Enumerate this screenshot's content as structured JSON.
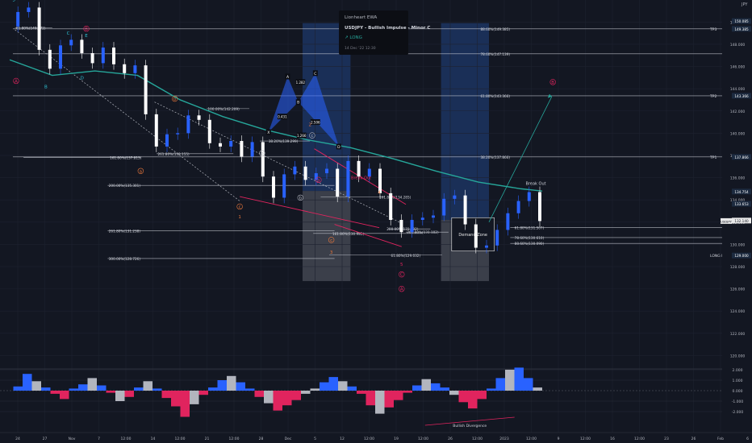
{
  "chart_data": {
    "type": "line",
    "symbol": "USDJPY",
    "price_scale": {
      "unit_label": "JPY",
      "ticks": [
        120,
        122,
        124,
        126,
        128,
        130,
        132,
        134,
        136,
        138,
        140,
        142,
        144,
        146,
        148,
        150
      ],
      "range": [
        118.8,
        151.4
      ],
      "badges": [
        {
          "price": 150.085,
          "label": "150.085",
          "color": "#1c2a3f"
        },
        {
          "price": 149.385,
          "label": "149.385",
          "color": "#1c2a3f"
        },
        {
          "price": 143.366,
          "label": "143.366",
          "color": "#1c2a3f"
        },
        {
          "price": 137.866,
          "label": "137.866",
          "color": "#1c2a3f"
        },
        {
          "price": 134.754,
          "label": "134.754",
          "color": "#1c2a3f"
        },
        {
          "price": 133.653,
          "label": "133.653",
          "color": "#1c2a3f"
        },
        {
          "price": 132.14,
          "label": "132.140",
          "color": "#e8e8e8"
        },
        {
          "price": 128.999,
          "label": "129.000",
          "color": "#1c2a3f"
        }
      ],
      "side_labels": [
        {
          "price": 149.385,
          "text": "TP3"
        },
        {
          "price": 143.366,
          "text": "TP2"
        },
        {
          "price": 137.866,
          "text": "TP1"
        },
        {
          "price": 128.999,
          "text": "LONG ENTRY 2"
        }
      ],
      "symbol_tag": "USDJPY"
    },
    "time_axis": [
      "24",
      "27",
      "Nov",
      "7",
      "12:00",
      "14",
      "12:00",
      "21",
      "12:00",
      "28",
      "Dec",
      "5",
      "12",
      "12:00",
      "19",
      "12:00",
      "26",
      "12:00",
      "2023",
      "12:00",
      "9",
      "12:00",
      "16",
      "12:00",
      "23",
      "26",
      "Feb",
      "6"
    ],
    "price_series": [
      {
        "t": 0,
        "p": 149.6
      },
      {
        "t": 1,
        "p": 150.9
      },
      {
        "t": 2,
        "p": 151.3
      },
      {
        "t": 3,
        "p": 147.5
      },
      {
        "t": 4,
        "p": 145.8
      },
      {
        "t": 5,
        "p": 147.9
      },
      {
        "t": 6,
        "p": 148.4
      },
      {
        "t": 7,
        "p": 147.2
      },
      {
        "t": 8,
        "p": 146.3
      },
      {
        "t": 9,
        "p": 147.7
      },
      {
        "t": 10,
        "p": 146.2
      },
      {
        "t": 11,
        "p": 145.4
      },
      {
        "t": 12,
        "p": 146.1
      },
      {
        "t": 13,
        "p": 141.7
      },
      {
        "t": 14,
        "p": 138.8
      },
      {
        "t": 15,
        "p": 139.9
      },
      {
        "t": 16,
        "p": 140.0
      },
      {
        "t": 17,
        "p": 141.6
      },
      {
        "t": 18,
        "p": 141.2
      },
      {
        "t": 19,
        "p": 139.1
      },
      {
        "t": 20,
        "p": 138.8
      },
      {
        "t": 21,
        "p": 139.3
      },
      {
        "t": 22,
        "p": 137.9
      },
      {
        "t": 23,
        "p": 139.2
      },
      {
        "t": 24,
        "p": 136.1
      },
      {
        "t": 25,
        "p": 134.2
      },
      {
        "t": 26,
        "p": 136.3
      },
      {
        "t": 27,
        "p": 137.0
      },
      {
        "t": 28,
        "p": 135.8
      },
      {
        "t": 29,
        "p": 136.4
      },
      {
        "t": 30,
        "p": 136.8
      },
      {
        "t": 31,
        "p": 134.3
      },
      {
        "t": 32,
        "p": 137.5
      },
      {
        "t": 33,
        "p": 136.1
      },
      {
        "t": 34,
        "p": 136.8
      },
      {
        "t": 35,
        "p": 134.6
      },
      {
        "t": 36,
        "p": 132.2
      },
      {
        "t": 37,
        "p": 131.1
      },
      {
        "t": 38,
        "p": 132.2
      },
      {
        "t": 39,
        "p": 132.4
      },
      {
        "t": 40,
        "p": 132.6
      },
      {
        "t": 41,
        "p": 134.1
      },
      {
        "t": 42,
        "p": 134.4
      },
      {
        "t": 43,
        "p": 131.8
      },
      {
        "t": 44,
        "p": 129.7
      },
      {
        "t": 45,
        "p": 129.9
      },
      {
        "t": 46,
        "p": 131.3
      },
      {
        "t": 47,
        "p": 132.8
      },
      {
        "t": 48,
        "p": 133.9
      },
      {
        "t": 49,
        "p": 134.7
      },
      {
        "t": 50,
        "p": 132.1
      }
    ],
    "moving_average": {
      "name": "",
      "values": [
        {
          "t": 0,
          "p": 146.6
        },
        {
          "t": 4,
          "p": 145.2
        },
        {
          "t": 8,
          "p": 145.6
        },
        {
          "t": 12,
          "p": 145.2
        },
        {
          "t": 16,
          "p": 143.0
        },
        {
          "t": 20,
          "p": 141.5
        },
        {
          "t": 24,
          "p": 140.3
        },
        {
          "t": 28,
          "p": 139.4
        },
        {
          "t": 32,
          "p": 138.7
        },
        {
          "t": 36,
          "p": 137.7
        },
        {
          "t": 40,
          "p": 136.6
        },
        {
          "t": 44,
          "p": 135.6
        },
        {
          "t": 48,
          "p": 135.0
        },
        {
          "t": 50,
          "p": 134.8
        }
      ]
    },
    "fib_levels": [
      {
        "t1": 0.3,
        "t2": 50,
        "price": 149.385,
        "label": "88.60%(149.385)",
        "label_t": 44.2
      },
      {
        "t1": 0.3,
        "t2": 50,
        "price": 147.139,
        "label": "78.60%(147.139)",
        "label_t": 44.2
      },
      {
        "t1": 0.3,
        "t2": 50,
        "price": 143.366,
        "label": "61.80%(143.366)",
        "label_t": 44.2
      },
      {
        "t1": 0.3,
        "t2": 50,
        "price": 137.866,
        "label": "38.20%(137.866)",
        "label_t": 44.2
      },
      {
        "t1": 9.2,
        "t2": 30.5,
        "price": 135.301,
        "label": "200.00%(135.301)",
        "label_t": 9.3
      },
      {
        "t1": 9.2,
        "t2": 30.5,
        "price": 131.238,
        "label": "261.80%(131.238)",
        "label_t": 9.3
      },
      {
        "t1": 9.2,
        "t2": 30.5,
        "price": 128.726,
        "label": "300.00%(128.726)",
        "label_t": 9.3
      },
      {
        "t1": 1.3,
        "t2": 12.3,
        "price": 137.813,
        "label": "161.80%(137.813)",
        "label_t": 9.4
      },
      {
        "t1": 13.8,
        "t2": 21.0,
        "price": 138.155,
        "label": "261.80%(138.155)",
        "label_t": 13.9
      },
      {
        "t1": 18.5,
        "t2": 22.5,
        "price": 142.209,
        "label": "100.00%(142.209)",
        "label_t": 18.6
      },
      {
        "t1": 23.5,
        "t2": 28.2,
        "price": 139.299,
        "label": "38.20%(139.299)",
        "label_t": 24.3
      },
      {
        "t1": 29.2,
        "t2": 35.2,
        "price": 134.285,
        "label": "161.80%(134.285)",
        "label_t": 34.7
      },
      {
        "t1": 28.5,
        "t2": 38.8,
        "price": 130.985,
        "label": "161.80%(130.985)",
        "label_t": 30.3
      },
      {
        "t1": 30.0,
        "t2": 40.6,
        "price": 129.032,
        "label": "61.80%(129.032)",
        "label_t": 35.8
      },
      {
        "t1": 35.5,
        "t2": 39.5,
        "price": 131.392,
        "label": "200.00%(131.392)",
        "label_t": 35.4
      },
      {
        "t1": 37.2,
        "t2": 41.2,
        "price": 131.102,
        "label": "261.80%(131.102)",
        "label_t": 37.3
      },
      {
        "t1": 41.5,
        "t2": 44.2,
        "price": 129.787,
        "label": "61.80%(129.787)",
        "label_t": 41.5
      },
      {
        "t1": 47.0,
        "t2": 50.3,
        "price": 131.507,
        "label": "61.80%(131.507)",
        "label_t": 47.4
      },
      {
        "t1": 47.0,
        "t2": 50.3,
        "price": 130.61,
        "label": "78.60%(130.610)",
        "label_t": 47.4
      },
      {
        "t1": 47.0,
        "t2": 50.3,
        "price": 130.09,
        "label": "88.60%(130.090)",
        "label_t": 47.4
      },
      {
        "t1": 0.5,
        "t2": 4.0,
        "price": 149.472,
        "label": "61.80%(149.472)",
        "label_t": 0.6
      }
    ],
    "wave_labels": [
      {
        "t": 0.4,
        "p": 152.0,
        "text": "5",
        "color": "#2ec4d6",
        "circle": false
      },
      {
        "t": 5.5,
        "p": 149.0,
        "text": "C",
        "color": "#2ec4d6",
        "circle": false
      },
      {
        "t": 7.2,
        "p": 148.8,
        "text": "E",
        "color": "#2ec4d6",
        "circle": false
      },
      {
        "t": 7.2,
        "p": 149.4,
        "text": "B",
        "color": "#e0245e",
        "circle": true
      },
      {
        "t": 3.4,
        "p": 144.2,
        "text": "B",
        "color": "#2ec4d6",
        "circle": false
      },
      {
        "t": 6.8,
        "p": 145.0,
        "text": "D",
        "color": "#2ec4d6",
        "circle": false
      },
      {
        "t": 0.6,
        "p": 144.7,
        "text": "A",
        "color": "#e0245e",
        "circle": true
      },
      {
        "t": 12.3,
        "p": 136.6,
        "text": "a",
        "color": "#e8763b",
        "circle": true
      },
      {
        "t": 15.5,
        "p": 143.1,
        "text": "b",
        "color": "#e8763b",
        "circle": true
      },
      {
        "t": 21.6,
        "p": 133.4,
        "text": "c",
        "color": "#e8763b",
        "circle": true
      },
      {
        "t": 21.6,
        "p": 132.5,
        "text": "1",
        "color": "#e8763b",
        "circle": false
      },
      {
        "t": 23.7,
        "p": 138.2,
        "text": "b",
        "color": "#b2b5be",
        "circle": true
      },
      {
        "t": 28.4,
        "p": 139.8,
        "text": "c",
        "color": "#b2b5be",
        "circle": true
      },
      {
        "t": 28.2,
        "p": 140.8,
        "text": "2",
        "color": "#e8763b",
        "circle": false
      },
      {
        "t": 27.3,
        "p": 134.2,
        "text": "b",
        "color": "#b2b5be",
        "circle": true
      },
      {
        "t": 29.0,
        "p": 135.8,
        "text": "a",
        "color": "#e0245e",
        "circle": true
      },
      {
        "t": 30.2,
        "p": 130.4,
        "text": "c",
        "color": "#e8763b",
        "circle": true
      },
      {
        "t": 30.2,
        "p": 129.3,
        "text": "3",
        "color": "#e8763b",
        "circle": false
      },
      {
        "t": 34.7,
        "p": 134.7,
        "text": "4",
        "color": "#e8763b",
        "circle": false
      },
      {
        "t": 36.8,
        "p": 128.2,
        "text": "5",
        "color": "#e0245e",
        "circle": false
      },
      {
        "t": 36.8,
        "p": 127.3,
        "text": "C",
        "color": "#e0245e",
        "circle": true
      },
      {
        "t": 36.8,
        "p": 126.0,
        "text": "A",
        "color": "#e0245e",
        "circle": true
      },
      {
        "t": 49.4,
        "p": 135.5,
        "text": "Break Out",
        "color": "#d1d4dc",
        "circle": false
      },
      {
        "t": 33.0,
        "p": 136.0,
        "text": "Break Out",
        "color": "#e0245e",
        "circle": false
      },
      {
        "t": 51.0,
        "p": 144.6,
        "text": "B",
        "color": "#e0245e",
        "circle": true
      }
    ],
    "harmonic": {
      "points": [
        {
          "t": 24.3,
          "p": 140.1,
          "l": "X"
        },
        {
          "t": 26.1,
          "p": 145.1,
          "l": "A"
        },
        {
          "t": 27.1,
          "p": 142.8,
          "l": "B"
        },
        {
          "t": 28.7,
          "p": 145.4,
          "l": "C"
        },
        {
          "t": 30.9,
          "p": 138.8,
          "l": "D"
        }
      ],
      "ratios": [
        {
          "t": 25.6,
          "p": 141.5,
          "text": "0.431"
        },
        {
          "t": 27.3,
          "p": 144.6,
          "text": "1.282"
        },
        {
          "t": 28.7,
          "p": 141.0,
          "text": "2.506"
        },
        {
          "t": 27.4,
          "p": 139.8,
          "text": "1.266"
        }
      ]
    },
    "demand_zone": {
      "t1": 41.5,
      "t2": 45.5,
      "p_top": 132.4,
      "p_bottom": 129.4,
      "label": "Demand Zone"
    },
    "projection": {
      "from_t": 45.0,
      "from_p": 132.0,
      "to_t": 50.9,
      "to_p": 143.3
    },
    "position_boxes": [
      {
        "t1": 27.5,
        "t2": 32.0,
        "p_top": 149.9,
        "p_mid": 134.8,
        "p_bottom": 126.7
      },
      {
        "t1": 40.5,
        "t2": 45.0,
        "p_top": 149.9,
        "p_mid": 132.2,
        "p_bottom": 126.7
      }
    ],
    "oscillator": {
      "ticks": [
        "2.000",
        "1.000",
        "0.000",
        "-1.000",
        "-2.000"
      ],
      "levels": [
        2,
        1,
        0,
        -1,
        -2
      ],
      "values": [
        0.0,
        0.4,
        1.6,
        0.9,
        0.3,
        -0.3,
        -0.8,
        0.2,
        0.6,
        1.2,
        0.5,
        -0.2,
        -1.0,
        -0.6,
        0.3,
        0.9,
        0.2,
        -0.7,
        -1.5,
        -2.5,
        -1.3,
        -0.4,
        0.3,
        1.0,
        1.4,
        0.8,
        0.2,
        -0.6,
        -1.2,
        -1.9,
        -1.4,
        -0.9,
        -0.3,
        0.2,
        0.8,
        1.3,
        0.9,
        0.4,
        -0.3,
        -1.4,
        -2.2,
        -1.6,
        -0.9,
        -0.2,
        0.5,
        1.1,
        0.7,
        0.3,
        -0.4,
        -1.1,
        -1.7,
        -0.8,
        0.2,
        1.2,
        2.0,
        2.2,
        1.2,
        0.3
      ],
      "annotation": "Bullish Divergence"
    }
  },
  "tooltip": {
    "author": "Lionheart EWA",
    "title": "USDJPY - Bullish Impulse - Minor C",
    "status": "↗ LONG",
    "date": "14 Dec '22  12:30"
  },
  "colors": {
    "background": "#131722",
    "candle_up": "#2962ff",
    "candle_down": "#ffffff",
    "ma": "#26a69a",
    "pink": "#e0245e",
    "orange": "#e8763b",
    "cyan": "#2ec4d6",
    "harmonic": "#2962ff",
    "osc_pos": "#2962ff",
    "osc_neg": "#e0245e",
    "osc_gray": "#b2b5be"
  }
}
